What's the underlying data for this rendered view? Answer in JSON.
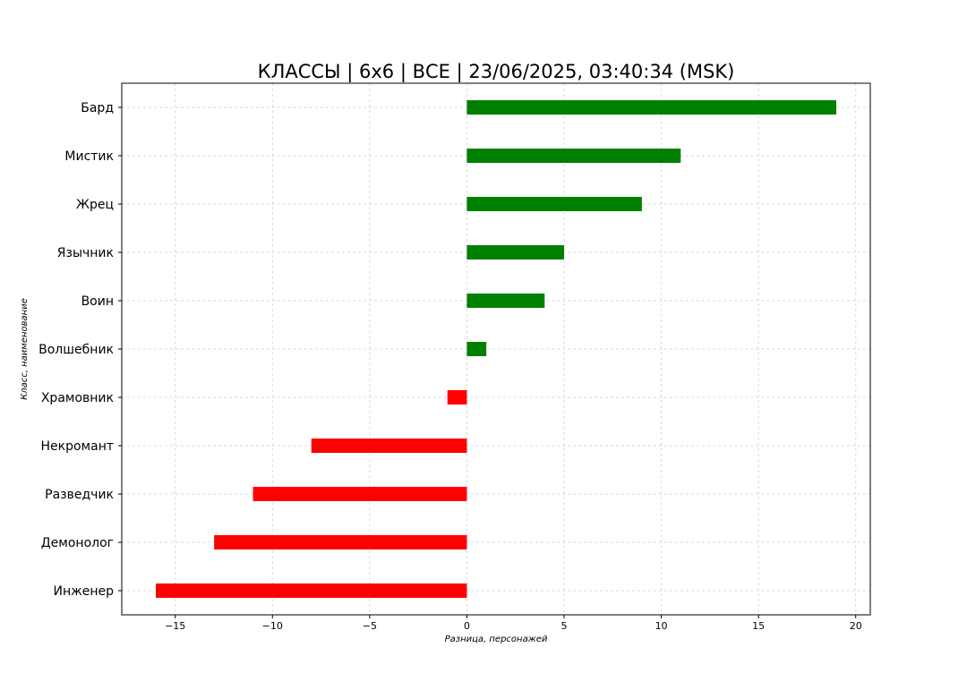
{
  "chart_data": {
    "type": "bar",
    "orientation": "horizontal",
    "title": "КЛАССЫ | 6х6 | ВСЕ | 23/06/2025, 03:40:34 (MSK)",
    "xlabel": "Разница, персонажей",
    "ylabel": "Класс, наименование",
    "categories": [
      "Бард",
      "Мистик",
      "Жрец",
      "Язычник",
      "Воин",
      "Волшебник",
      "Храмовник",
      "Некромант",
      "Разведчик",
      "Демонолог",
      "Инженер"
    ],
    "values": [
      19,
      11,
      9,
      5,
      4,
      1,
      -1,
      -8,
      -11,
      -13,
      -16
    ],
    "xlim": [
      -17.75,
      20.75
    ],
    "xticks": [
      -15,
      -10,
      -5,
      0,
      5,
      10,
      15,
      20
    ],
    "xtick_labels": [
      "−15",
      "−10",
      "−5",
      "0",
      "5",
      "10",
      "15",
      "20"
    ],
    "grid": true,
    "colors": {
      "positive": "#008000",
      "negative": "#ff0000"
    }
  }
}
